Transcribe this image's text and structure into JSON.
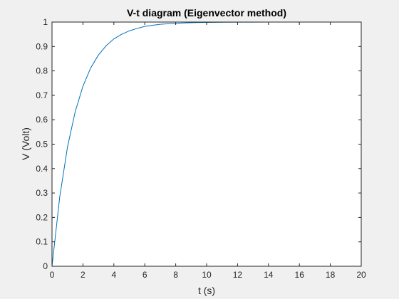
{
  "chart_data": {
    "type": "line",
    "title": "V-t diagram (Eigenvector method)",
    "xlabel": "t (s)",
    "ylabel": "V (Volt)",
    "xlim": [
      0,
      20
    ],
    "ylim": [
      0,
      1
    ],
    "xticks": [
      0,
      2,
      4,
      6,
      8,
      10,
      12,
      14,
      16,
      18,
      20
    ],
    "xtick_labels": [
      "0",
      "2",
      "4",
      "6",
      "8",
      "10",
      "12",
      "14",
      "16",
      "18",
      "20"
    ],
    "yticks": [
      0,
      0.1,
      0.2,
      0.3,
      0.4,
      0.5,
      0.6,
      0.7,
      0.8,
      0.9,
      1
    ],
    "ytick_labels": [
      "0",
      "0.1",
      "0.2",
      "0.3",
      "0.4",
      "0.5",
      "0.6",
      "0.7",
      "0.8",
      "0.9",
      "1"
    ],
    "grid": false,
    "series": [
      {
        "color": "#0072BD",
        "x": [
          0,
          0.5,
          1,
          1.5,
          2,
          2.5,
          3,
          3.5,
          4,
          4.5,
          5,
          5.5,
          6,
          6.5,
          7,
          7.5,
          8,
          8.5,
          9,
          9.5,
          10,
          11,
          12,
          13,
          14,
          15,
          16,
          17,
          18,
          19,
          20
        ],
        "y": [
          0,
          0.284,
          0.488,
          0.633,
          0.737,
          0.812,
          0.865,
          0.903,
          0.931,
          0.95,
          0.964,
          0.974,
          0.982,
          0.987,
          0.991,
          0.993,
          0.995,
          0.9965,
          0.9975,
          0.9982,
          0.9987,
          0.9994,
          0.9997,
          0.9998,
          0.9999,
          1,
          1,
          1,
          1,
          1,
          1
        ]
      }
    ]
  }
}
